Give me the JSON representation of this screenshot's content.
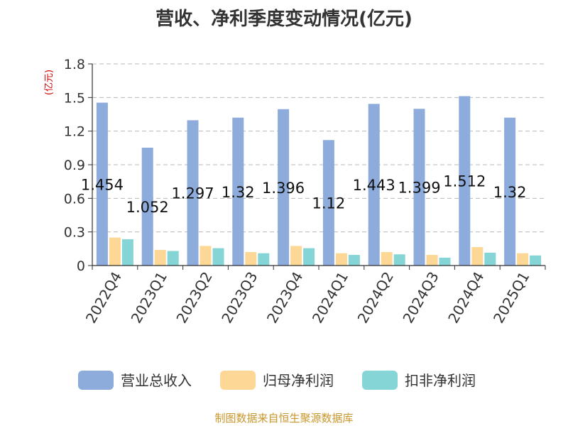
{
  "chart_data": {
    "type": "bar",
    "title": "营收、净利季度变动情况(亿元)",
    "unit_label": "(亿元)",
    "categories": [
      "2022Q4",
      "2023Q1",
      "2023Q2",
      "2023Q3",
      "2023Q4",
      "2024Q1",
      "2024Q2",
      "2024Q3",
      "2024Q4",
      "2025Q1"
    ],
    "series": [
      {
        "name": "营业总收入",
        "color": "#8eacdb",
        "values": [
          1.454,
          1.052,
          1.297,
          1.32,
          1.396,
          1.12,
          1.443,
          1.399,
          1.512,
          1.32
        ],
        "labels": [
          "1.454",
          "1.052",
          "1.297",
          "1.32",
          "1.396",
          "1.12",
          "1.443",
          "1.399",
          "1.512",
          "1.32"
        ]
      },
      {
        "name": "归母净利润",
        "color": "#fdd795",
        "values": [
          0.25,
          0.14,
          0.175,
          0.12,
          0.175,
          0.11,
          0.12,
          0.095,
          0.165,
          0.11
        ]
      },
      {
        "name": "扣非净利润",
        "color": "#86d5d6",
        "values": [
          0.235,
          0.13,
          0.155,
          0.11,
          0.155,
          0.095,
          0.1,
          0.07,
          0.115,
          0.09
        ]
      }
    ],
    "y_ticks": [
      "0",
      "0.3",
      "0.6",
      "0.9",
      "1.2",
      "1.5",
      "1.8"
    ],
    "ylim": [
      0,
      1.8
    ],
    "grid": true,
    "legend_position": "bottom"
  },
  "source_text": "制图数据来自恒生聚源数据库"
}
